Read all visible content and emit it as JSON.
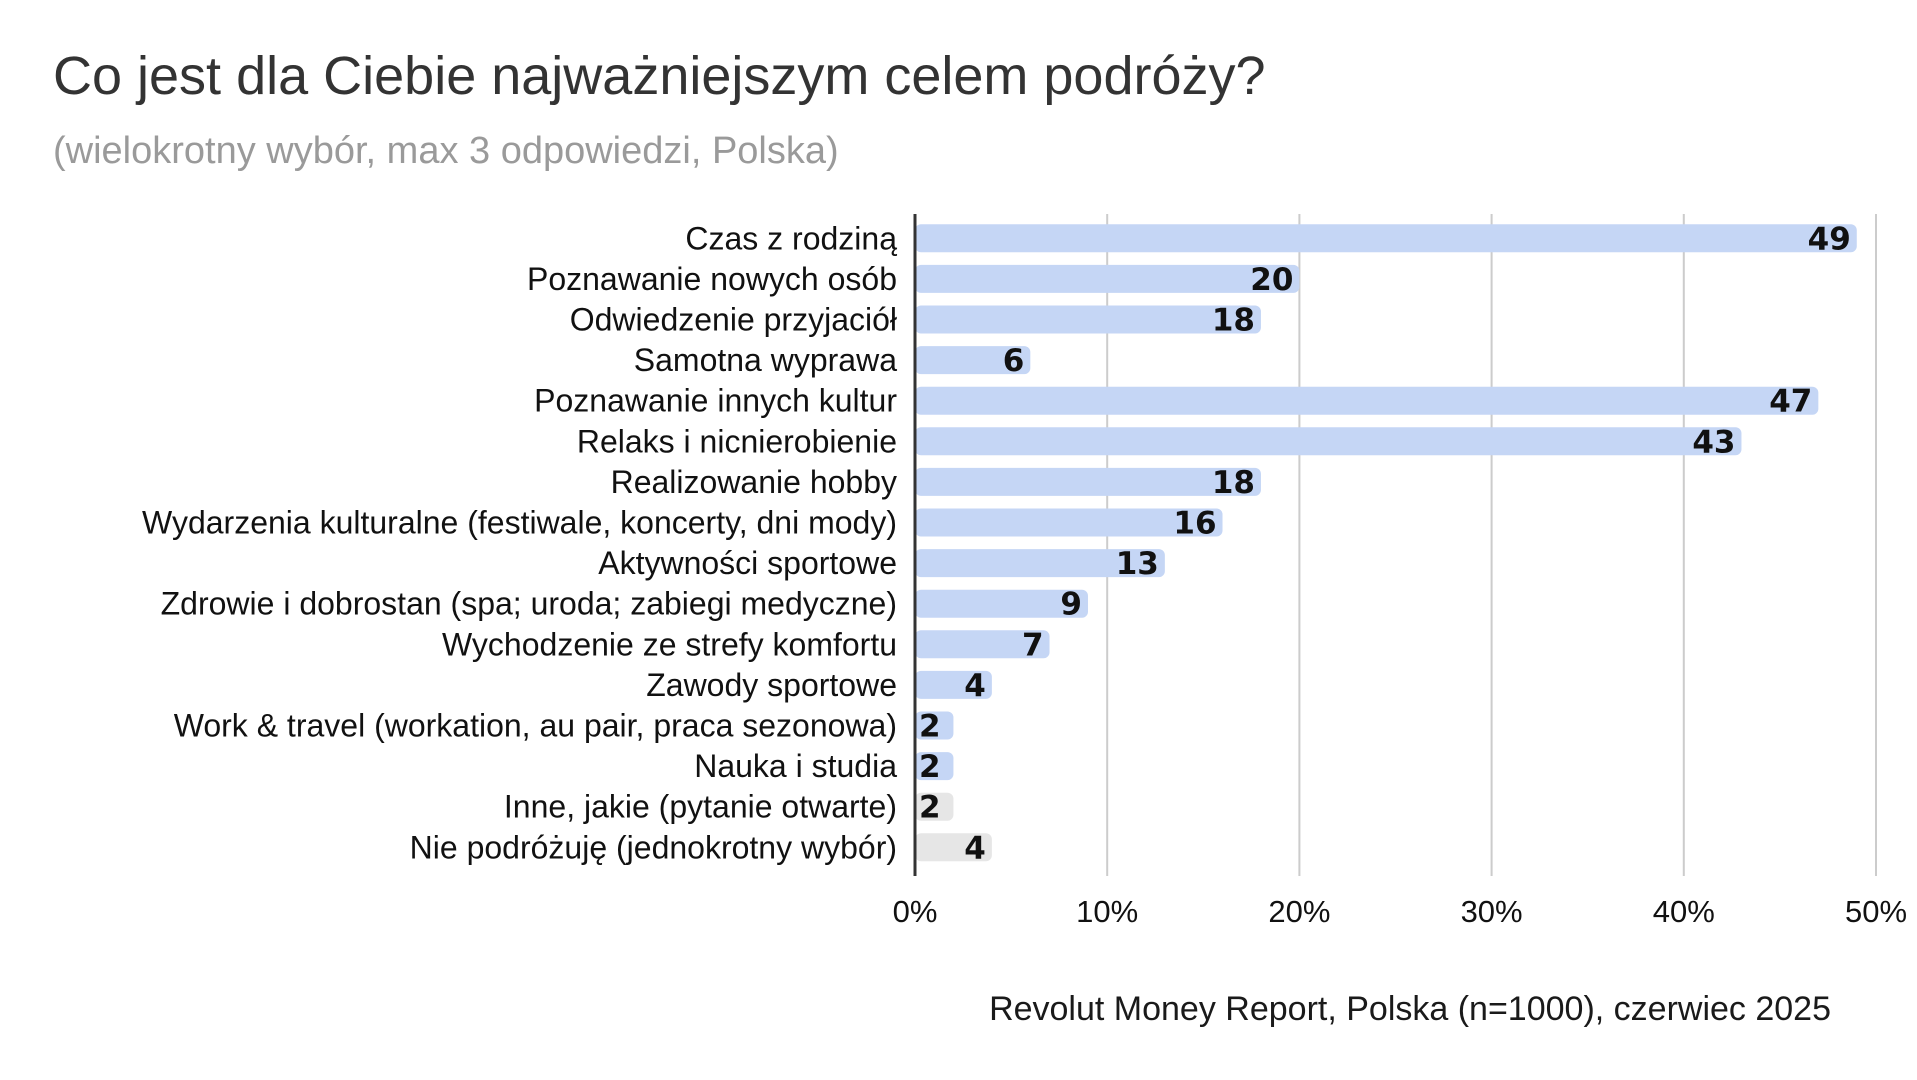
{
  "title": "Co jest dla Ciebie najważniejszym celem podróży?",
  "subtitle": "(wielokrotny wybór, max 3 odpowiedzi, Polska)",
  "source": "Revolut Money Report, Polska (n=1000), czerwiec 2025",
  "colors": {
    "bar": "#c5d6f5",
    "bar_muted": "#e6e6e6",
    "grid": "#cccccc",
    "axis": "#333333"
  },
  "chart_data": {
    "type": "bar",
    "orientation": "horizontal",
    "categories": [
      "Czas z rodziną",
      "Poznawanie nowych osób",
      "Odwiedzenie przyjaciół",
      "Samotna wyprawa",
      "Poznawanie innych kultur",
      "Relaks i nicnierobienie",
      "Realizowanie hobby",
      "Wydarzenia kulturalne (festiwale, koncerty, dni mody)",
      "Aktywności sportowe",
      "Zdrowie i dobrostan (spa; uroda; zabiegi medyczne)",
      "Wychodzenie ze strefy komfortu",
      "Zawody sportowe",
      "Work & travel (workation, au pair, praca sezonowa)",
      "Nauka i studia",
      "Inne, jakie (pytanie otwarte)",
      "Nie podróżuję (jednokrotny wybór)"
    ],
    "values": [
      49,
      20,
      18,
      6,
      47,
      43,
      18,
      16,
      13,
      9,
      7,
      4,
      2,
      2,
      2,
      4
    ],
    "data_labels": [
      "49",
      "20",
      "18",
      "6",
      "47",
      "43",
      "18",
      "16",
      "13",
      "9",
      "7",
      "4",
      "2",
      "2",
      "2",
      "4"
    ],
    "muted": [
      false,
      false,
      false,
      false,
      false,
      false,
      false,
      false,
      false,
      false,
      false,
      false,
      false,
      false,
      true,
      true
    ],
    "xlim": [
      0,
      50
    ],
    "xticks": [
      0,
      10,
      20,
      30,
      40,
      50
    ],
    "xtick_labels": [
      "0%",
      "10%",
      "20%",
      "30%",
      "40%",
      "50%"
    ],
    "grid": true,
    "legend": "none"
  }
}
